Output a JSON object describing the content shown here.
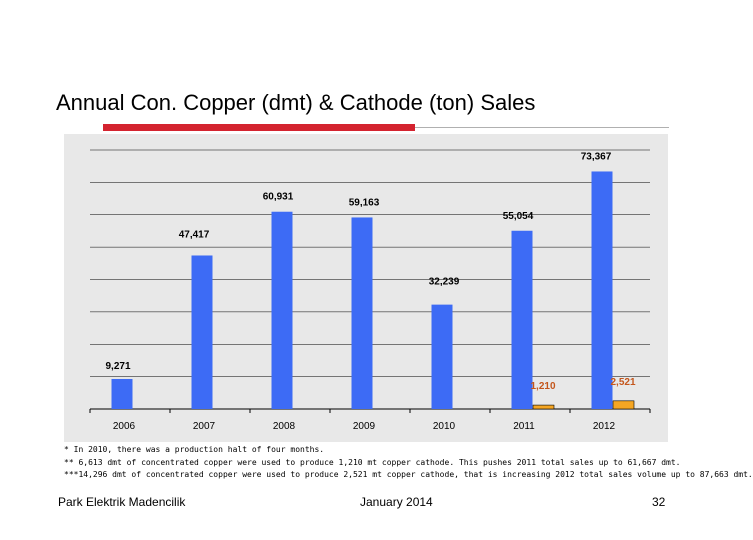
{
  "slide": {
    "title": "Annual Con. Copper (dmt) & Cathode (ton) Sales",
    "footer_left": "Park Elektrik Madencilik",
    "footer_date": "January  2014",
    "page_number": "32",
    "colors": {
      "accent_red": "#d4232f",
      "rule_gray": "#b0b0b0",
      "plot_bg": "#e8e8e8"
    }
  },
  "footnotes": [
    "* In 2010, there was a production halt of four months.",
    "** 6,613 dmt of concentrated copper were used to produce 1,210 mt copper cathode. This pushes 2011 total sales up to 61,667 dmt.",
    "***14,296 dmt of concentrated copper were used to produce 2,521 mt copper cathode, that is increasing 2012 total  sales volume up to 87,663 dmt."
  ],
  "chart_data": {
    "type": "bar",
    "title": "Annual Con. Copper (dmt) & Cathode (ton) Sales",
    "categories": [
      "2006",
      "2007",
      "2008",
      "2009",
      "2010",
      "2011",
      "2012"
    ],
    "ylim": [
      0,
      80000
    ],
    "grid": true,
    "series": [
      {
        "name": "Con. Copper (dmt)",
        "color": "#3d6bf5",
        "values": [
          9271,
          47417,
          60931,
          59163,
          32239,
          55054,
          73367
        ],
        "labels": [
          "9,271",
          "47,417",
          "60,931",
          "59,163",
          "32,239",
          "55,054",
          "73,367"
        ]
      },
      {
        "name": "Cathode (ton)",
        "color": "#f5a623",
        "values": [
          null,
          null,
          null,
          null,
          null,
          1210,
          2521
        ],
        "labels": [
          "",
          "",
          "",
          "",
          "",
          "1,210",
          "2,521"
        ],
        "label_color": "#c4561c"
      }
    ]
  }
}
